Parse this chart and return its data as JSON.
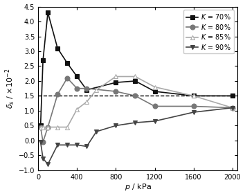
{
  "title": "",
  "xlabel": "p / kPa",
  "ylim": [
    -1.0,
    4.5
  ],
  "xlim": [
    0,
    2050
  ],
  "xticks": [
    0,
    400,
    800,
    1200,
    1600,
    2000
  ],
  "yticks": [
    -1.0,
    -0.5,
    0.0,
    0.5,
    1.0,
    1.5,
    2.0,
    2.5,
    3.0,
    3.5,
    4.0,
    4.5
  ],
  "dashed_line_y": 1.5,
  "series": [
    {
      "label": "K = 70%",
      "color": "#111111",
      "marker": "s",
      "markersize": 5,
      "linewidth": 1.2,
      "mfc": "#111111",
      "mec": "#111111",
      "x": [
        25,
        50,
        100,
        200,
        300,
        400,
        500,
        800,
        1000,
        1200,
        1600,
        2000
      ],
      "y": [
        0.5,
        2.7,
        4.3,
        3.1,
        2.6,
        2.15,
        1.7,
        1.95,
        2.0,
        1.65,
        1.5,
        1.5
      ]
    },
    {
      "label": "K = 80%",
      "color": "#777777",
      "marker": "o",
      "markersize": 5,
      "linewidth": 1.2,
      "mfc": "#777777",
      "mec": "#777777",
      "x": [
        25,
        50,
        100,
        200,
        300,
        400,
        500,
        800,
        1000,
        1200,
        1600,
        2000
      ],
      "y": [
        0.45,
        -0.05,
        0.45,
        1.55,
        2.1,
        1.75,
        1.75,
        1.65,
        1.5,
        1.15,
        1.15,
        1.1
      ]
    },
    {
      "label": "K = 85%",
      "color": "#aaaaaa",
      "marker": "^",
      "markersize": 5,
      "linewidth": 1.2,
      "mfc": "white",
      "mec": "#aaaaaa",
      "x": [
        25,
        50,
        100,
        200,
        300,
        400,
        500,
        600,
        800,
        1000,
        1200,
        1600,
        2000
      ],
      "y": [
        0.45,
        0.45,
        0.45,
        0.45,
        0.45,
        1.05,
        1.3,
        1.7,
        2.15,
        2.15,
        1.8,
        1.5,
        1.1
      ]
    },
    {
      "label": "K = 90%",
      "color": "#444444",
      "marker": "v",
      "markersize": 5,
      "linewidth": 1.2,
      "mfc": "#444444",
      "mec": "#444444",
      "x": [
        25,
        50,
        100,
        200,
        300,
        400,
        500,
        600,
        800,
        1000,
        1200,
        1600,
        2000
      ],
      "y": [
        -0.05,
        -0.6,
        -0.8,
        -0.15,
        -0.15,
        -0.15,
        -0.2,
        0.3,
        0.5,
        0.6,
        0.65,
        0.95,
        1.1
      ]
    }
  ],
  "legend_loc": "upper right",
  "legend_fontsize": 7,
  "figsize": [
    3.54,
    2.83
  ],
  "dpi": 100,
  "tick_fontsize": 7,
  "xlabel_fontsize": 8,
  "ylabel_fontsize": 8
}
